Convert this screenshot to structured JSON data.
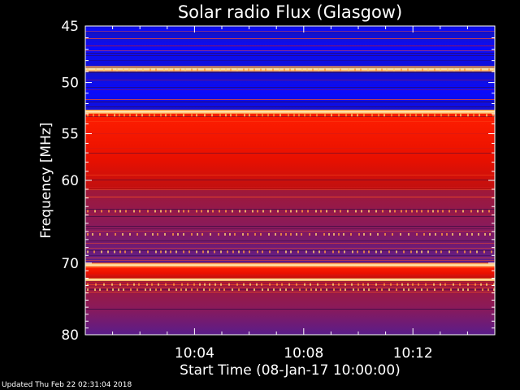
{
  "chart_data": {
    "type": "heatmap",
    "title": "Solar radio Flux (Glasgow)",
    "xlabel": "Start Time (08-Jan-17 10:00:00)",
    "ylabel": "Frequency [MHz]",
    "x_range_minutes": [
      0,
      15
    ],
    "x_ticks": [
      {
        "minute": 4,
        "label": "10:04"
      },
      {
        "minute": 8,
        "label": "10:08"
      },
      {
        "minute": 12,
        "label": "10:12"
      }
    ],
    "y_range_mhz": [
      45,
      80
    ],
    "y_scale": "log",
    "y_ticks": [
      {
        "mhz": 45,
        "label": "45"
      },
      {
        "mhz": 50,
        "label": "50"
      },
      {
        "mhz": 55,
        "label": "55"
      },
      {
        "mhz": 60,
        "label": "60"
      },
      {
        "mhz": 70,
        "label": "70"
      },
      {
        "mhz": 80,
        "label": "80"
      }
    ],
    "colormap": {
      "low": "#0a0adc",
      "mid": "#8c1e64",
      "high": "#ff1a00",
      "peak": "#fff5c0"
    },
    "bands": [
      {
        "from_mhz": 45.0,
        "to_mhz": 45.6,
        "level": "low"
      },
      {
        "from_mhz": 45.6,
        "to_mhz": 48.5,
        "level": "low"
      },
      {
        "from_mhz": 48.5,
        "to_mhz": 49.0,
        "level": "peak"
      },
      {
        "from_mhz": 49.0,
        "to_mhz": 52.6,
        "level": "low"
      },
      {
        "from_mhz": 52.6,
        "to_mhz": 53.0,
        "level": "peak"
      },
      {
        "from_mhz": 53.0,
        "to_mhz": 61.0,
        "level": "high"
      },
      {
        "from_mhz": 61.0,
        "to_mhz": 70.0,
        "level": "mid"
      },
      {
        "from_mhz": 70.0,
        "to_mhz": 70.5,
        "level": "peak"
      },
      {
        "from_mhz": 70.5,
        "to_mhz": 72.0,
        "level": "high"
      },
      {
        "from_mhz": 72.0,
        "to_mhz": 72.4,
        "level": "peak"
      },
      {
        "from_mhz": 72.4,
        "to_mhz": 80.0,
        "level": "mid"
      }
    ]
  },
  "footer": "Updated Thu Feb 22 02:31:04 2018"
}
